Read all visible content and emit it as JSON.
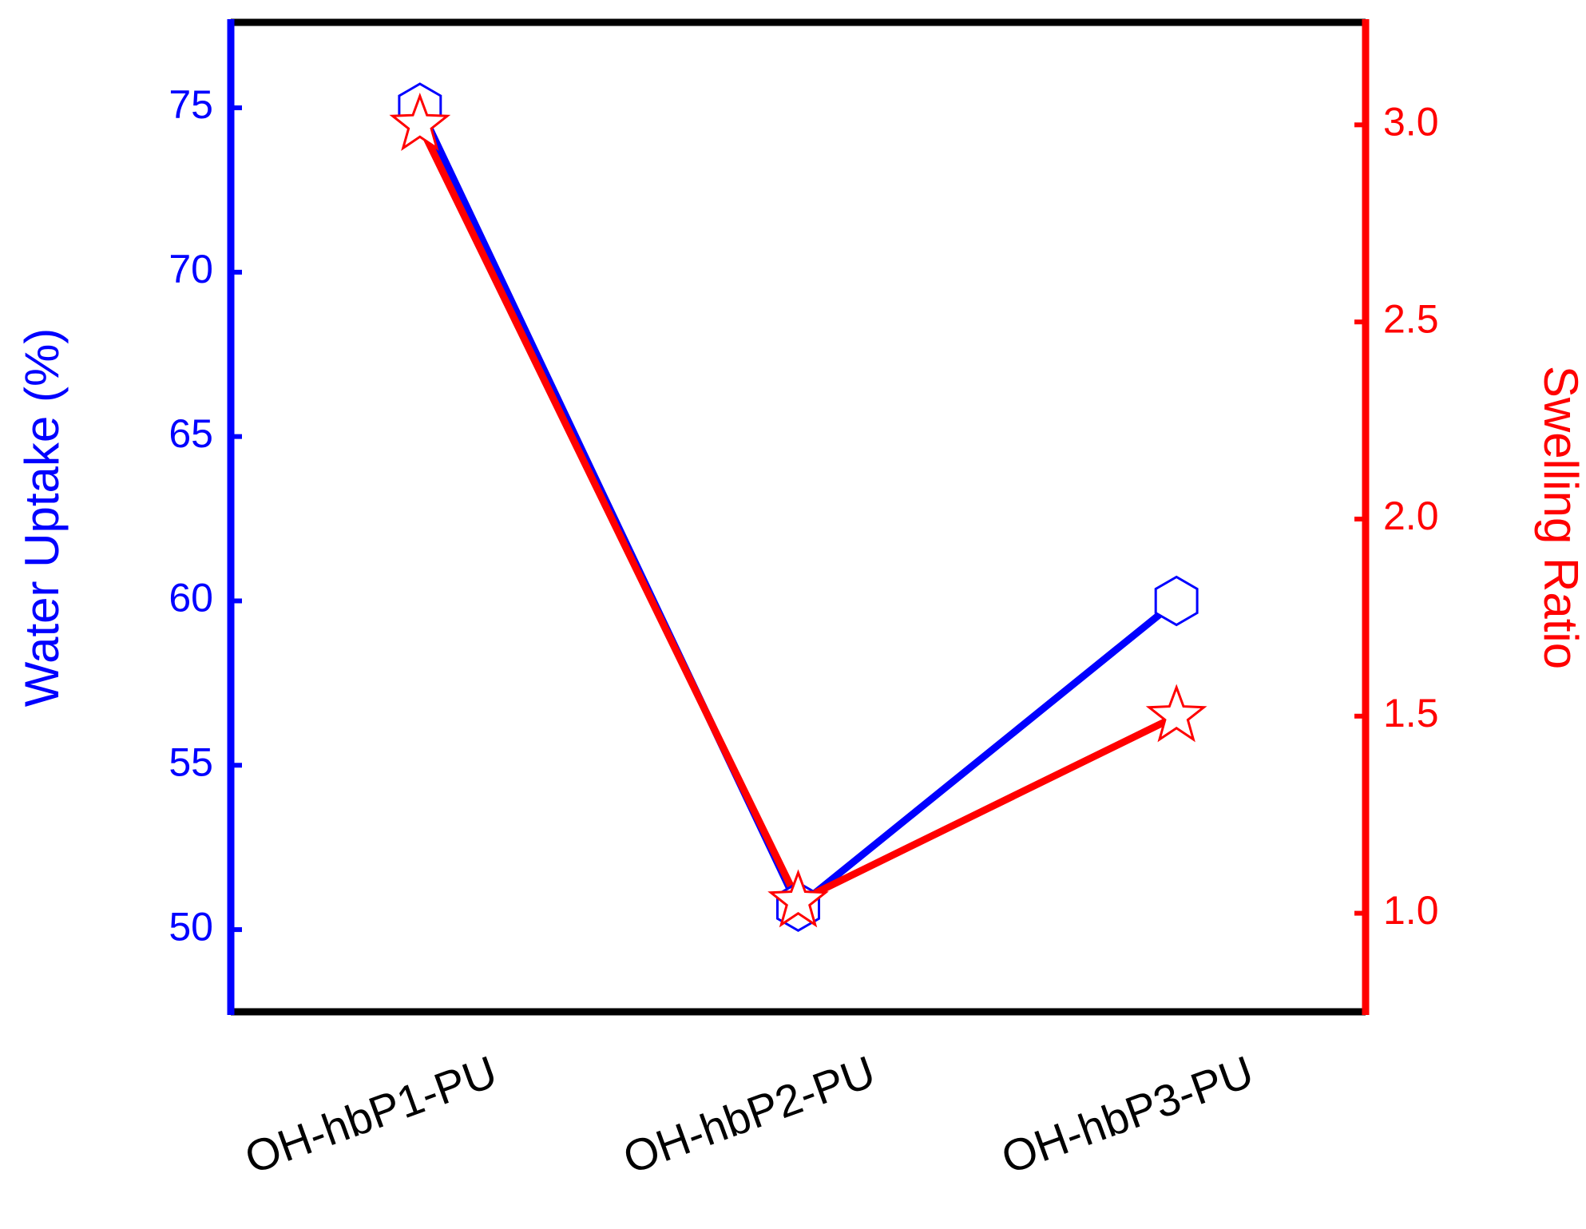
{
  "chart_data": {
    "type": "line",
    "categories": [
      "OH-hbP1-PU",
      "OH-hbP2-PU",
      "OH-hbP3-PU"
    ],
    "y_label": "Water Uptake (%)",
    "y2_label": "Swelling Ratio",
    "series": [
      {
        "name": "Water Uptake",
        "color": "#0000ff",
        "marker": "hexagon",
        "values": [
          75,
          50.7,
          60
        ]
      },
      {
        "name": "Swelling Ratio",
        "color": "#ff0000",
        "marker": "star",
        "axis": "y2",
        "values": [
          3.0,
          1.03,
          1.5
        ]
      }
    ],
    "ylim": [
      47.5,
      77.6
    ],
    "yticks": [
      50,
      55,
      60,
      65,
      70,
      75
    ],
    "y2lim": [
      0.75,
      3.26
    ],
    "y2ticks": [
      {
        "value": 1,
        "label": "1.0"
      },
      1.5,
      {
        "value": 2,
        "label": "2.0"
      },
      2.5,
      {
        "value": 3,
        "label": "3.0"
      }
    ]
  }
}
